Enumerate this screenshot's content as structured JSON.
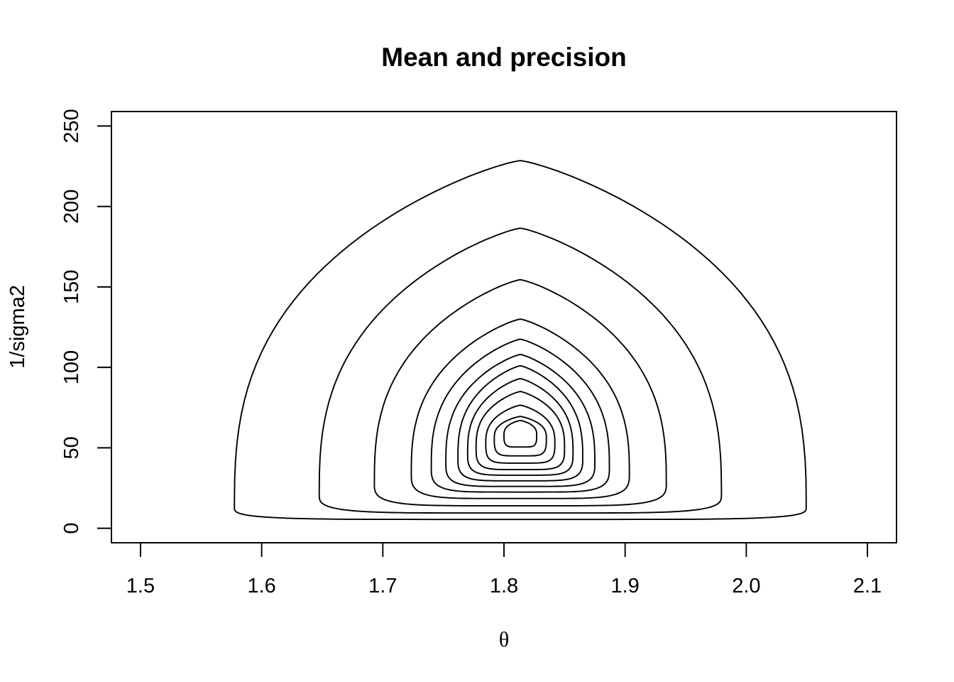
{
  "chart_data": {
    "type": "contour",
    "title": "Mean and precision",
    "xlabel": "θ",
    "ylabel": "1/sigma2",
    "xlim": [
      1.476,
      2.124
    ],
    "ylim": [
      -9,
      259
    ],
    "x_ticks": [
      1.5,
      1.6,
      1.7,
      1.8,
      1.9,
      2.0,
      2.1
    ],
    "x_tick_labels": [
      "1.5",
      "1.6",
      "1.7",
      "1.8",
      "1.9",
      "2.0",
      "2.1"
    ],
    "y_ticks": [
      0,
      50,
      100,
      150,
      200,
      250
    ],
    "y_tick_labels": [
      "0",
      "50",
      "100",
      "150",
      "200",
      "250"
    ],
    "grid": false,
    "legend": "none",
    "contours": [
      {
        "center_x": 1.8135,
        "y_bottom": 5.5,
        "y_top": 228.5,
        "x_min": 1.578,
        "x_max": 2.05,
        "y_widest": 13
      },
      {
        "center_x": 1.8135,
        "y_bottom": 9.5,
        "y_top": 186.5,
        "x_min": 1.648,
        "x_max": 1.98,
        "y_widest": 21
      },
      {
        "center_x": 1.8135,
        "y_bottom": 14,
        "y_top": 154.5,
        "x_min": 1.694,
        "x_max": 1.935,
        "y_widest": 28
      },
      {
        "center_x": 1.8135,
        "y_bottom": 18.5,
        "y_top": 130,
        "x_min": 1.723,
        "x_max": 1.903,
        "y_widest": 34
      },
      {
        "center_x": 1.8135,
        "y_bottom": 22.5,
        "y_top": 117.5,
        "x_min": 1.74,
        "x_max": 1.887,
        "y_widest": 38
      },
      {
        "center_x": 1.8135,
        "y_bottom": 26,
        "y_top": 108,
        "x_min": 1.752,
        "x_max": 1.875,
        "y_widest": 41
      },
      {
        "center_x": 1.8135,
        "y_bottom": 29.5,
        "y_top": 101,
        "x_min": 1.762,
        "x_max": 1.865,
        "y_widest": 44
      },
      {
        "center_x": 1.8135,
        "y_bottom": 33,
        "y_top": 93,
        "x_min": 1.77,
        "x_max": 1.857,
        "y_widest": 47
      },
      {
        "center_x": 1.8135,
        "y_bottom": 36.5,
        "y_top": 85,
        "x_min": 1.777,
        "x_max": 1.85,
        "y_widest": 50
      },
      {
        "center_x": 1.8135,
        "y_bottom": 40.5,
        "y_top": 76.5,
        "x_min": 1.785,
        "x_max": 1.842,
        "y_widest": 53
      },
      {
        "center_x": 1.8135,
        "y_bottom": 45,
        "y_top": 69.5,
        "x_min": 1.792,
        "x_max": 1.835,
        "y_widest": 56
      },
      {
        "center_x": 1.8135,
        "y_bottom": 50.5,
        "y_top": 67,
        "x_min": 1.8,
        "x_max": 1.827,
        "y_widest": 58
      }
    ]
  }
}
